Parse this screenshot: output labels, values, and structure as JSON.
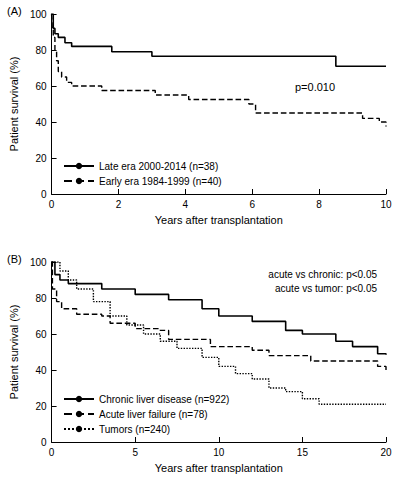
{
  "chart_data": [
    {
      "type": "line",
      "title": "(A)",
      "x_label": "Years after transplantation",
      "y_label": "Patient survival (%)",
      "xlim": [
        0,
        10
      ],
      "xticks": [
        0,
        2,
        4,
        6,
        8,
        10
      ],
      "ylim": [
        0,
        100
      ],
      "yticks": [
        0,
        20,
        40,
        60,
        80,
        100
      ],
      "grid": false,
      "legend": "lower left",
      "annotations": [
        "p=0.010"
      ],
      "series": [
        {
          "name": "Late era 2000-2014 (n=38)",
          "color": "#000000",
          "line_style": "solid",
          "x": [
            0,
            0.05,
            0.1,
            0.2,
            0.4,
            0.6,
            1.8,
            3.0,
            8.5,
            10
          ],
          "values": [
            100,
            92,
            89,
            87,
            84,
            82,
            79,
            76.5,
            71,
            71
          ]
        },
        {
          "name": "Early era 1984-1999 (n=40)",
          "color": "#000000",
          "line_style": "dashed",
          "x": [
            0,
            0.02,
            0.05,
            0.1,
            0.15,
            0.2,
            0.3,
            0.45,
            0.6,
            1.5,
            3.1,
            4.1,
            5.9,
            6.1,
            9.3,
            9.8,
            10
          ],
          "values": [
            100,
            92,
            87,
            80,
            74,
            68,
            65,
            62,
            60,
            57.5,
            55,
            52.5,
            50,
            45,
            42,
            40,
            37.5
          ]
        }
      ]
    },
    {
      "type": "line",
      "title": "(B)",
      "x_label": "Years after transplantation",
      "y_label": "Patient survival (%)",
      "xlim": [
        0,
        20
      ],
      "xticks": [
        0,
        5,
        10,
        15,
        20
      ],
      "ylim": [
        0,
        100
      ],
      "yticks": [
        0,
        20,
        40,
        60,
        80,
        100
      ],
      "grid": false,
      "legend": "lower left",
      "annotations": [
        "acute vs chronic: p<0.05",
        "acute vs tumor: p<0.05"
      ],
      "series": [
        {
          "name": "Chronic liver disease (n=922)",
          "color": "#000000",
          "line_style": "solid",
          "x": [
            0,
            0.2,
            0.5,
            1,
            3,
            5,
            7,
            9,
            10,
            12,
            14,
            15,
            17,
            18,
            19.5,
            20
          ],
          "values": [
            100,
            93,
            90,
            88,
            85,
            82,
            79,
            74,
            70,
            67,
            62,
            60,
            56,
            53,
            49,
            48.5
          ]
        },
        {
          "name": "Acute liver failure (n=78)",
          "color": "#000000",
          "line_style": "dashed",
          "x": [
            0,
            0.05,
            0.3,
            0.6,
            1.5,
            3,
            3.5,
            5,
            6.5,
            7,
            9.5,
            12,
            13,
            15.5,
            19.5,
            20
          ],
          "values": [
            100,
            85,
            78,
            74,
            71,
            70,
            66,
            63,
            62,
            57,
            53,
            51,
            48,
            45,
            42,
            40
          ]
        },
        {
          "name": "Tumors (n=240)",
          "color": "#000000",
          "line_style": "dotted",
          "x": [
            0,
            0.5,
            1,
            1.5,
            2.5,
            3.5,
            4.5,
            5.5,
            6.5,
            7.5,
            9,
            10,
            11,
            12,
            13,
            14,
            15,
            16,
            20
          ],
          "values": [
            100,
            95,
            90,
            85,
            78,
            70,
            65,
            60,
            56,
            52,
            47,
            42,
            38,
            35,
            30,
            28,
            24,
            21,
            21
          ]
        }
      ]
    }
  ]
}
